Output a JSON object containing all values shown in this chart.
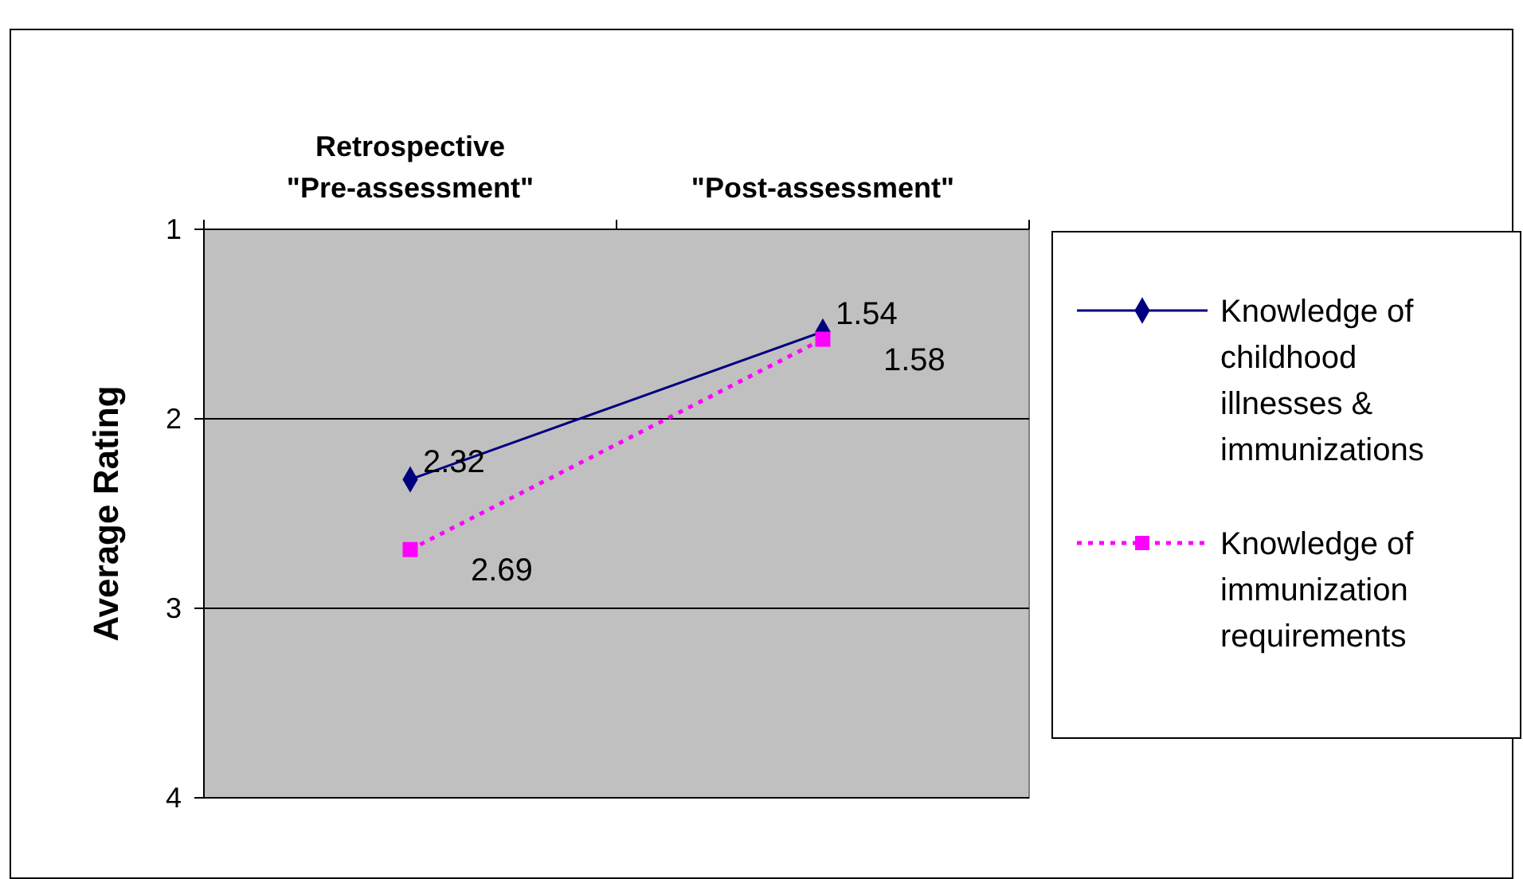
{
  "chart_data": {
    "type": "line",
    "ylabel": "Average Rating",
    "categories": [
      "Retrospective\n\"Pre-assessment\"",
      "\"Post-assessment\""
    ],
    "series": [
      {
        "name": "Knowledge of childhood illnesses & immunizations",
        "color": "#000080",
        "values": [
          2.32,
          1.54
        ],
        "marker": "diamond",
        "line_style": "solid"
      },
      {
        "name": "Knowledge of immunization requirements",
        "color": "#ff00ff",
        "values": [
          2.69,
          1.58
        ],
        "marker": "square",
        "line_style": "dotted"
      }
    ],
    "ylim": [
      4,
      1
    ],
    "yticks": [
      1,
      2,
      3,
      4
    ],
    "grid": "y",
    "legend": "right",
    "data_labels": true
  }
}
